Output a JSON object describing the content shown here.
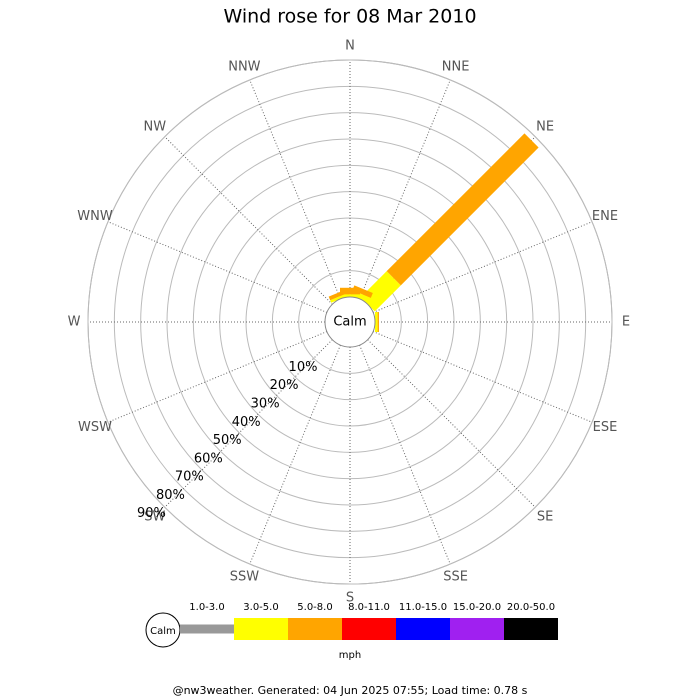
{
  "chart_data": {
    "type": "windrose",
    "title": "Wind rose for 08 Mar 2010",
    "categories": [
      "N",
      "NNE",
      "NE",
      "ENE",
      "E",
      "ESE",
      "SE",
      "SSE",
      "S",
      "SSW",
      "SW",
      "WSW",
      "W",
      "WNW",
      "NW",
      "NNW"
    ],
    "center_label": "Calm",
    "legend_title": "mph",
    "footer": "@nw3weather. Generated: 04 Jun 2025 07:55; Load time: 0.78 s",
    "rlim": [
      0,
      90
    ],
    "rticks": [
      {
        "value": 10,
        "label": "10%"
      },
      {
        "value": 20,
        "label": "20%"
      },
      {
        "value": 30,
        "label": "30%"
      },
      {
        "value": 40,
        "label": "40%"
      },
      {
        "value": 50,
        "label": "50%"
      },
      {
        "value": 60,
        "label": "60%"
      },
      {
        "value": 70,
        "label": "70%"
      },
      {
        "value": 80,
        "label": "80%"
      },
      {
        "value": 90,
        "label": "90%"
      }
    ],
    "series": [
      {
        "name": "1.0-3.0",
        "color": "#999999",
        "values": [
          0,
          0,
          0,
          0,
          0,
          0,
          0,
          0,
          0,
          0,
          0,
          0,
          0,
          0,
          0,
          0
        ]
      },
      {
        "name": "3.0-5.0",
        "color": "#ffff00",
        "values": [
          1,
          2,
          14,
          0,
          1,
          0,
          0,
          0,
          0,
          0,
          0,
          0,
          0,
          0,
          0,
          1
        ]
      },
      {
        "name": "5.0-8.0",
        "color": "#ffa500",
        "values": [
          2.5,
          2,
          74,
          0,
          0.5,
          0,
          0,
          0,
          0,
          0,
          0,
          0,
          0,
          0,
          0,
          1.5
        ]
      },
      {
        "name": "8.0-11.0",
        "color": "#ff0000",
        "values": [
          0,
          0,
          0,
          0,
          0,
          0,
          0,
          0,
          0,
          0,
          0,
          0,
          0,
          0,
          0,
          0
        ]
      },
      {
        "name": "11.0-15.0",
        "color": "#0000ff",
        "values": [
          0,
          0,
          0,
          0,
          0,
          0,
          0,
          0,
          0,
          0,
          0,
          0,
          0,
          0,
          0,
          0
        ]
      },
      {
        "name": "15.0-20.0",
        "color": "#a020f0",
        "values": [
          0,
          0,
          0,
          0,
          0,
          0,
          0,
          0,
          0,
          0,
          0,
          0,
          0,
          0,
          0,
          0
        ]
      },
      {
        "name": "20.0-50.0",
        "color": "#000000",
        "values": [
          0,
          0,
          0,
          0,
          0,
          0,
          0,
          0,
          0,
          0,
          0,
          0,
          0,
          0,
          0,
          0
        ]
      }
    ]
  }
}
